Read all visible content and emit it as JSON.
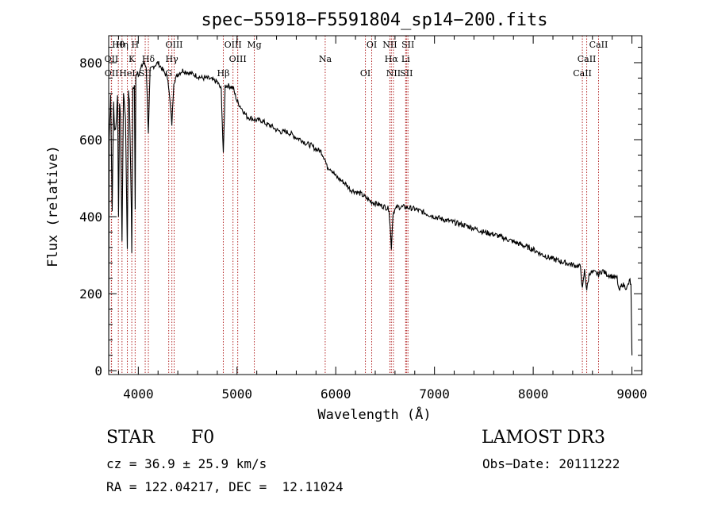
{
  "chart_data": {
    "type": "line",
    "title": "spec−55918−F5591804_sp14−200.fits",
    "xlabel": "Wavelength (Å)",
    "ylabel": "Flux (relative)",
    "xlim": [
      3700,
      9100
    ],
    "ylim": [
      -10,
      870
    ],
    "xticks": [
      4000,
      5000,
      6000,
      7000,
      8000,
      9000
    ],
    "yticks": [
      0,
      200,
      400,
      600,
      800
    ],
    "grid": false,
    "line_color": "#000000",
    "marker_color": "#b22222",
    "series": [
      {
        "name": "spectrum",
        "x": [
          3700,
          3705,
          3720,
          3735,
          3750,
          3760,
          3775,
          3790,
          3800,
          3810,
          3820,
          3835,
          3850,
          3870,
          3889,
          3900,
          3910,
          3930,
          3934,
          3945,
          3960,
          3968,
          3975,
          3990,
          4000,
          4020,
          4050,
          4080,
          4102,
          4120,
          4150,
          4200,
          4250,
          4300,
          4320,
          4340,
          4360,
          4400,
          4450,
          4500,
          4550,
          4600,
          4650,
          4700,
          4750,
          4800,
          4840,
          4861,
          4880,
          4920,
          4960,
          5000,
          5050,
          5100,
          5150,
          5200,
          5250,
          5300,
          5350,
          5400,
          5450,
          5500,
          5550,
          5600,
          5650,
          5700,
          5750,
          5800,
          5850,
          5890,
          5910,
          5950,
          6000,
          6050,
          6100,
          6150,
          6200,
          6250,
          6300,
          6350,
          6400,
          6450,
          6500,
          6540,
          6563,
          6580,
          6620,
          6700,
          6800,
          6900,
          7000,
          7100,
          7200,
          7300,
          7400,
          7500,
          7600,
          7700,
          7800,
          7900,
          8000,
          8100,
          8200,
          8300,
          8400,
          8480,
          8498,
          8520,
          8542,
          8570,
          8620,
          8662,
          8700,
          8750,
          8800,
          8850,
          8870,
          8900,
          8950,
          8980,
          8990,
          9000
        ],
        "y": [
          0,
          600,
          720,
          420,
          700,
          620,
          640,
          720,
          400,
          700,
          650,
          330,
          720,
          660,
          320,
          730,
          700,
          420,
          300,
          730,
          740,
          420,
          760,
          780,
          770,
          780,
          800,
          790,
          620,
          780,
          790,
          800,
          780,
          760,
          700,
          640,
          750,
          770,
          780,
          775,
          770,
          765,
          760,
          760,
          755,
          750,
          730,
          560,
          740,
          740,
          735,
          700,
          680,
          660,
          655,
          650,
          650,
          640,
          635,
          625,
          620,
          620,
          615,
          605,
          600,
          590,
          585,
          575,
          570,
          550,
          530,
          525,
          505,
          495,
          485,
          470,
          465,
          460,
          450,
          440,
          435,
          430,
          425,
          420,
          320,
          410,
          425,
          425,
          420,
          410,
          400,
          392,
          385,
          378,
          370,
          360,
          354,
          345,
          335,
          325,
          315,
          300,
          290,
          282,
          275,
          270,
          210,
          260,
          210,
          255,
          255,
          250,
          260,
          250,
          245,
          240,
          205,
          225,
          215,
          235,
          220,
          40
        ]
      }
    ],
    "line_labels": [
      {
        "text": "Hθ",
        "x": 3798
      },
      {
        "text": "OII",
        "x": 3727
      },
      {
        "text": "OII",
        "x": 3729
      },
      {
        "text": "Hη",
        "x": 3835
      },
      {
        "text": "K",
        "x": 3934
      },
      {
        "text": "HeI",
        "x": 3889
      },
      {
        "text": "H",
        "x": 3968
      },
      {
        "text": "Hδ",
        "x": 4102
      },
      {
        "text": "SII",
        "x": 4070
      },
      {
        "text": "OIII",
        "x": 4363
      },
      {
        "text": "Hγ",
        "x": 4340
      },
      {
        "text": "G",
        "x": 4308
      },
      {
        "text": "OIII",
        "x": 4959
      },
      {
        "text": "OIII",
        "x": 5007
      },
      {
        "text": "Hβ",
        "x": 4861
      },
      {
        "text": "Mg",
        "x": 5175
      },
      {
        "text": "Na",
        "x": 5893
      },
      {
        "text": "OI",
        "x": 6300
      },
      {
        "text": "OI",
        "x": 6364
      },
      {
        "text": "Hα",
        "x": 6563
      },
      {
        "text": "SII",
        "x": 6716
      },
      {
        "text": "NII",
        "x": 6548
      },
      {
        "text": "Li",
        "x": 6708
      },
      {
        "text": "NII",
        "x": 6584
      },
      {
        "text": "SII",
        "x": 6731
      },
      {
        "text": "CaII",
        "x": 8542
      },
      {
        "text": "CaII",
        "x": 8498
      },
      {
        "text": "CaII",
        "x": 8662
      }
    ]
  },
  "info": {
    "class_label": "STAR",
    "subclass": "F0",
    "survey": "LAMOST DR3",
    "redshift": "cz = 36.9 ± 25.9 km/s",
    "obs_date": "Obs−Date: 20111222",
    "coords": "RA = 122.04217, DEC =  12.11024"
  }
}
